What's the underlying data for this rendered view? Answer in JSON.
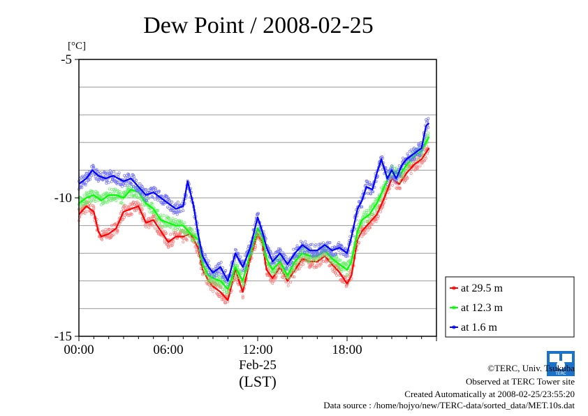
{
  "chart_data": {
    "type": "line",
    "title": "Dew Point / 2008-02-25",
    "yunit": "[°C]",
    "ylim": [
      -15,
      -5
    ],
    "xlim": [
      0,
      24
    ],
    "yticks": [
      -15,
      -10,
      -5
    ],
    "yticklabels": [
      "-15",
      "-10",
      "-5"
    ],
    "xticks": [
      0,
      6,
      12,
      18
    ],
    "xticklabels": [
      "00:00",
      "06:00",
      "12:00",
      "18:00"
    ],
    "xdate": "Feb-25",
    "xlabel": "(LST)",
    "grid": true,
    "legend_position": "bottom-right outside",
    "series": [
      {
        "name": "at 29.5 m",
        "color": "#ff0000",
        "x": [
          0,
          0.5,
          1,
          1.3,
          1.5,
          2,
          2.5,
          3,
          3.5,
          4,
          4.5,
          5,
          5.5,
          6,
          6.5,
          7,
          7.5,
          8,
          8.3,
          8.7,
          9,
          9.5,
          10,
          10.5,
          11,
          11.5,
          12,
          12.3,
          12.6,
          13,
          13.5,
          14,
          14.5,
          15,
          15.5,
          16,
          16.5,
          17,
          17.5,
          18,
          18.3,
          18.7,
          19,
          19.5,
          20,
          20.5,
          21,
          21.5,
          22,
          22.5,
          23,
          23.5
        ],
        "y": [
          -10.6,
          -10.3,
          -10.5,
          -11.2,
          -11.4,
          -11.3,
          -11.1,
          -10.5,
          -10.4,
          -10.3,
          -10.9,
          -10.8,
          -11.2,
          -11.6,
          -11.4,
          -11.4,
          -11.3,
          -11.8,
          -12.6,
          -13.0,
          -13.2,
          -13.4,
          -13.7,
          -12.6,
          -13.4,
          -12.2,
          -11.3,
          -11.6,
          -12.6,
          -12.9,
          -12.5,
          -13.0,
          -12.6,
          -12.2,
          -12.3,
          -12.3,
          -12.1,
          -12.4,
          -12.7,
          -13.1,
          -12.8,
          -11.5,
          -11.2,
          -10.9,
          -10.6,
          -10.0,
          -9.3,
          -9.5,
          -9.1,
          -8.8,
          -8.6,
          -8.2
        ]
      },
      {
        "name": "at 12.3 m",
        "color": "#00ff00",
        "x": [
          0,
          0.5,
          1,
          1.5,
          2,
          2.5,
          3,
          3.5,
          4,
          4.5,
          5,
          5.5,
          6,
          6.5,
          7,
          7.5,
          8,
          8.3,
          8.7,
          9,
          9.5,
          10,
          10.5,
          11,
          11.5,
          12,
          12.3,
          12.6,
          13,
          13.5,
          14,
          14.5,
          15,
          15.5,
          16,
          16.5,
          17,
          17.5,
          18,
          18.3,
          18.7,
          19,
          19.5,
          20,
          20.5,
          21,
          21.5,
          22,
          22.5,
          23,
          23.5
        ],
        "y": [
          -10.2,
          -10.0,
          -9.9,
          -10.1,
          -9.9,
          -9.9,
          -10.0,
          -9.7,
          -9.8,
          -10.2,
          -10.4,
          -10.8,
          -10.9,
          -11.0,
          -11.0,
          -11.3,
          -11.5,
          -12.4,
          -12.8,
          -12.9,
          -13.0,
          -13.3,
          -12.5,
          -13.0,
          -12.0,
          -11.1,
          -11.4,
          -12.2,
          -12.6,
          -12.3,
          -12.8,
          -12.3,
          -12.0,
          -12.1,
          -12.1,
          -11.9,
          -12.2,
          -12.4,
          -12.6,
          -12.3,
          -11.2,
          -10.8,
          -10.6,
          -10.2,
          -9.6,
          -9.0,
          -9.2,
          -8.8,
          -8.5,
          -8.3,
          -7.8
        ]
      },
      {
        "name": "at 1.6 m",
        "color": "#0000ff",
        "x": [
          0,
          0.5,
          0.9,
          1.3,
          1.8,
          2.3,
          3,
          3.5,
          4,
          4.5,
          5,
          5.5,
          6,
          6.5,
          7,
          7.3,
          7.7,
          8,
          8.3,
          8.7,
          9,
          9.5,
          10,
          10.5,
          11,
          11.5,
          12,
          12.3,
          12.6,
          13,
          13.5,
          14,
          14.5,
          15,
          15.5,
          16,
          16.5,
          17,
          17.5,
          18,
          18.3,
          18.7,
          19,
          19.3,
          19.7,
          20,
          20.3,
          20.7,
          21,
          21.3,
          21.7,
          22,
          22.5,
          23,
          23.3,
          23.5
        ],
        "y": [
          -9.5,
          -9.3,
          -9.0,
          -9.2,
          -9.3,
          -9.2,
          -9.4,
          -9.3,
          -9.6,
          -9.9,
          -9.8,
          -10.0,
          -10.2,
          -10.4,
          -10.3,
          -9.4,
          -10.3,
          -11.3,
          -12.1,
          -12.5,
          -12.7,
          -12.5,
          -13.0,
          -12.0,
          -12.5,
          -11.8,
          -10.7,
          -11.2,
          -11.8,
          -12.3,
          -12.0,
          -12.4,
          -12.0,
          -11.7,
          -11.9,
          -11.9,
          -11.7,
          -11.9,
          -11.8,
          -12.0,
          -11.4,
          -10.4,
          -10.1,
          -9.6,
          -9.7,
          -9.1,
          -8.6,
          -9.3,
          -9.0,
          -9.3,
          -8.8,
          -8.6,
          -8.4,
          -8.2,
          -7.4,
          -7.3
        ]
      }
    ]
  },
  "credits": {
    "copyright": "©TERC, Univ. Tsukuba",
    "observed": "Observed at TERC Tower site",
    "created": "Created Automatically at 2008-02-25/23:55:20",
    "source": "Data source : /home/hojyo/new/TERC-data/sorted_data/MET.10s.dat",
    "logo_text": "TERC"
  }
}
